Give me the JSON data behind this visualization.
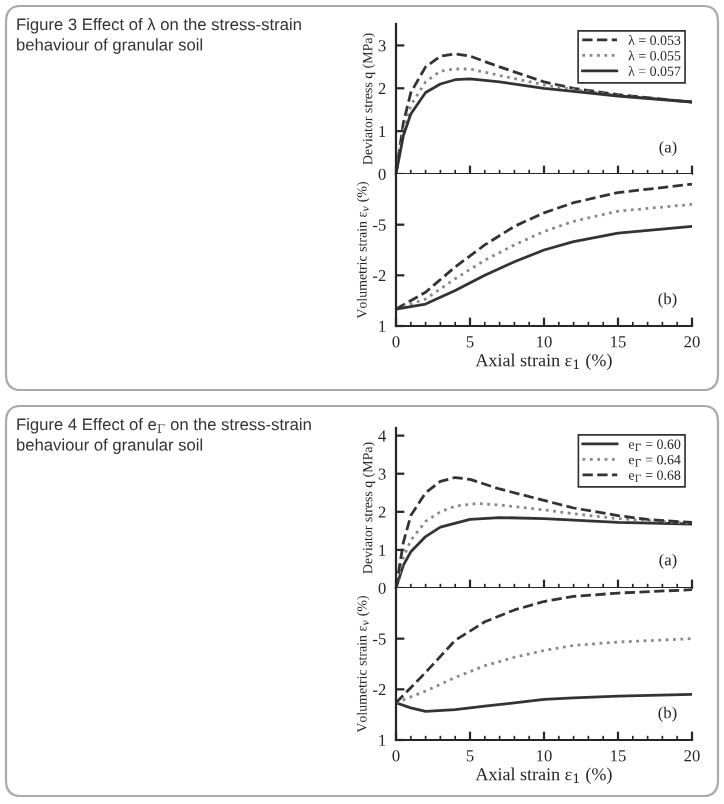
{
  "chart_data": [
    {
      "type": "line",
      "ylabel": "Deviator stress q (MPa)",
      "xlim": [
        0,
        20
      ],
      "xticks": [
        0,
        5,
        10,
        15,
        20
      ],
      "ylim": [
        0,
        3.5
      ],
      "yticks": [
        0,
        1,
        2,
        3
      ],
      "tick_labels": "y",
      "legend": "top right",
      "annotations": [
        "(a)",
        "Figure 3 Effect of λ on the stress-strain behaviour of granular soil"
      ],
      "series": [
        {
          "name": "λ = 0.053",
          "color": "#333333",
          "line_style": "dashed",
          "x": [
            0,
            0.5,
            1,
            2,
            3,
            4,
            5,
            7,
            10,
            12,
            15,
            17,
            20
          ],
          "values": [
            0,
            1.2,
            1.9,
            2.5,
            2.75,
            2.8,
            2.75,
            2.5,
            2.15,
            2.0,
            1.85,
            1.78,
            1.68
          ]
        },
        {
          "name": "λ = 0.055",
          "color": "#888888",
          "line_style": "dotted",
          "x": [
            0,
            0.5,
            1,
            2,
            3,
            4,
            5,
            7,
            10,
            12,
            15,
            20
          ],
          "values": [
            0,
            1.0,
            1.6,
            2.15,
            2.4,
            2.45,
            2.45,
            2.3,
            2.08,
            1.97,
            1.83,
            1.68
          ]
        },
        {
          "name": "λ = 0.057",
          "color": "#333333",
          "line_style": "solid",
          "x": [
            0,
            0.5,
            1,
            2,
            3,
            4,
            5,
            7,
            10,
            12,
            15,
            20
          ],
          "values": [
            0,
            0.9,
            1.4,
            1.9,
            2.1,
            2.2,
            2.22,
            2.15,
            2.0,
            1.93,
            1.82,
            1.68
          ]
        }
      ]
    },
    {
      "type": "line",
      "xlabel": "Axial strain ε$_{1}$ (%)",
      "ylabel": "Volumetric strain ε$_{v}$ (%)",
      "xlim": [
        0,
        20
      ],
      "xticks": [
        0,
        5,
        10,
        15,
        20
      ],
      "ylim": [
        1,
        -8
      ],
      "yticks": [
        1,
        -2,
        -5
      ],
      "annotations": [
        "(b)"
      ],
      "series": [
        {
          "color": "#333333",
          "line_style": "dashed",
          "x": [
            0,
            2,
            4,
            6,
            8,
            10,
            12,
            15,
            20
          ],
          "values": [
            0,
            -1.0,
            -2.5,
            -3.8,
            -4.9,
            -5.7,
            -6.3,
            -6.9,
            -7.4
          ]
        },
        {
          "color": "#888888",
          "line_style": "dotted",
          "x": [
            0,
            2,
            4,
            6,
            8,
            10,
            12,
            15,
            20
          ],
          "values": [
            0,
            -0.6,
            -1.8,
            -2.9,
            -3.8,
            -4.6,
            -5.2,
            -5.8,
            -6.2
          ]
        },
        {
          "color": "#333333",
          "line_style": "solid",
          "x": [
            0,
            2,
            4,
            6,
            8,
            10,
            12,
            15,
            20
          ],
          "values": [
            0,
            -0.3,
            -1.1,
            -2.0,
            -2.8,
            -3.5,
            -4.0,
            -4.5,
            -4.9
          ]
        }
      ]
    },
    {
      "type": "line",
      "ylabel": "Deviator stress q (MPa)",
      "xlim": [
        0,
        20
      ],
      "xticks": [
        0,
        5,
        10,
        15,
        20
      ],
      "ylim": [
        0,
        4.2
      ],
      "yticks": [
        0,
        1,
        2,
        3,
        4
      ],
      "tick_labels": "y",
      "legend": "top right",
      "annotations": [
        "(a)",
        "Figure 4 Effect of e$_{Γ}$ on the stress-strain behaviour of granular soil"
      ],
      "series": [
        {
          "name": "e$_{Γ}$ = 0.60",
          "color": "#333333",
          "line_style": "solid",
          "x": [
            0,
            0.5,
            1,
            2,
            3,
            5,
            7,
            10,
            12,
            15,
            20
          ],
          "values": [
            0,
            0.6,
            0.95,
            1.35,
            1.6,
            1.8,
            1.85,
            1.82,
            1.78,
            1.72,
            1.68
          ]
        },
        {
          "name": "e$_{Γ}$ = 0.64",
          "color": "#888888",
          "line_style": "dotted",
          "x": [
            0,
            0.5,
            1,
            2,
            3,
            4,
            5.5,
            7,
            10,
            12,
            15,
            20
          ],
          "values": [
            0,
            0.8,
            1.25,
            1.75,
            2.0,
            2.15,
            2.22,
            2.18,
            2.05,
            1.95,
            1.82,
            1.7
          ]
        },
        {
          "name": "e$_{Γ}$ = 0.68",
          "color": "#333333",
          "line_style": "dashed",
          "x": [
            0,
            0.5,
            1,
            2,
            3,
            4,
            5,
            7,
            10,
            12,
            15,
            17,
            20
          ],
          "values": [
            0,
            1.2,
            1.9,
            2.5,
            2.8,
            2.9,
            2.85,
            2.6,
            2.3,
            2.1,
            1.9,
            1.8,
            1.72
          ]
        }
      ]
    },
    {
      "type": "line",
      "xlabel": "Axial strain ε$_{1}$ (%)",
      "ylabel": "Volumetric strain ε$_{v}$ (%)",
      "xlim": [
        0,
        20
      ],
      "xticks": [
        0,
        5,
        10,
        15,
        20
      ],
      "ylim": [
        1,
        -8
      ],
      "yticks": [
        1,
        -2,
        -5
      ],
      "annotations": [
        "(b)"
      ],
      "series": [
        {
          "color": "#333333",
          "line_style": "solid",
          "x": [
            0,
            1,
            2,
            4,
            6,
            8,
            10,
            12,
            15,
            20
          ],
          "values": [
            -1.2,
            -0.9,
            -0.7,
            -0.8,
            -1.0,
            -1.2,
            -1.4,
            -1.5,
            -1.6,
            -1.7
          ]
        },
        {
          "color": "#888888",
          "line_style": "dotted",
          "x": [
            0,
            2,
            4,
            6,
            8,
            10,
            12,
            15,
            20
          ],
          "values": [
            -1.2,
            -1.9,
            -2.7,
            -3.4,
            -3.9,
            -4.3,
            -4.6,
            -4.8,
            -5.0
          ]
        },
        {
          "color": "#333333",
          "line_style": "dashed",
          "x": [
            0,
            2,
            4,
            6,
            8,
            10,
            12,
            15,
            20
          ],
          "values": [
            -1.2,
            -3.0,
            -4.9,
            -6.0,
            -6.7,
            -7.2,
            -7.5,
            -7.7,
            -7.9
          ]
        }
      ]
    }
  ]
}
